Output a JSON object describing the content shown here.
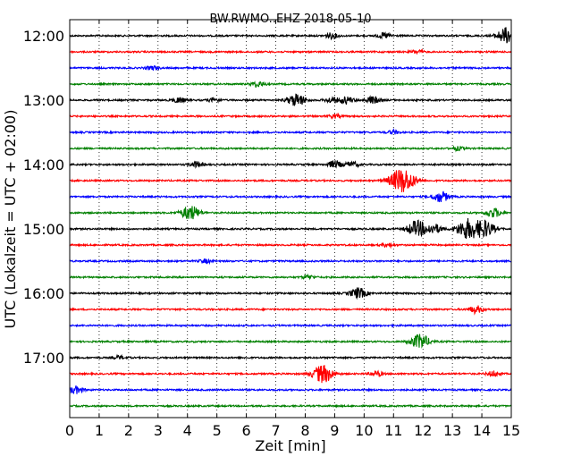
{
  "chart_data": {
    "type": "line",
    "title": "BW.RWMO..EHZ 2018-05-10",
    "xlabel": "Zeit  [min]",
    "ylabel": "UTC (Lokalzeit = UTC + 02:00)",
    "xlim": [
      0,
      15
    ],
    "x_ticks": [
      "0",
      "1",
      "2",
      "3",
      "4",
      "5",
      "6",
      "7",
      "8",
      "9",
      "10",
      "11",
      "12",
      "13",
      "14",
      "15"
    ],
    "y_tick_labels": [
      "12:00",
      "13:00",
      "14:00",
      "15:00",
      "16:00",
      "17:00"
    ],
    "grid": true,
    "row_interval_min": 15,
    "rows": [
      {
        "time": "12:00",
        "color": "#000000",
        "events": [
          {
            "t": 8.9,
            "a": 3
          },
          {
            "t": 10.7,
            "a": 3
          },
          {
            "t": 14.85,
            "a": 9
          }
        ]
      },
      {
        "time": "12:15",
        "color": "#ff0000",
        "events": [
          {
            "t": 11.8,
            "a": 2
          }
        ]
      },
      {
        "time": "12:30",
        "color": "#0000ff",
        "events": [
          {
            "t": 2.8,
            "a": 2
          }
        ]
      },
      {
        "time": "12:45",
        "color": "#008000",
        "events": [
          {
            "t": 6.4,
            "a": 3
          }
        ]
      },
      {
        "time": "13:00",
        "color": "#000000",
        "events": [
          {
            "t": 3.7,
            "a": 3
          },
          {
            "t": 4.9,
            "a": 2
          },
          {
            "t": 7.7,
            "a": 7
          },
          {
            "t": 8.9,
            "a": 3
          },
          {
            "t": 9.4,
            "a": 4
          },
          {
            "t": 10.3,
            "a": 4
          }
        ]
      },
      {
        "time": "13:15",
        "color": "#ff0000",
        "events": [
          {
            "t": 9.0,
            "a": 2
          }
        ]
      },
      {
        "time": "13:30",
        "color": "#0000ff",
        "events": [
          {
            "t": 11.0,
            "a": 2
          }
        ]
      },
      {
        "time": "13:45",
        "color": "#008000",
        "events": [
          {
            "t": 13.2,
            "a": 2
          }
        ]
      },
      {
        "time": "14:00",
        "color": "#000000",
        "events": [
          {
            "t": 4.3,
            "a": 3
          },
          {
            "t": 9.0,
            "a": 4
          },
          {
            "t": 9.6,
            "a": 3
          }
        ]
      },
      {
        "time": "14:15",
        "color": "#ff0000",
        "events": [
          {
            "t": 11.3,
            "a": 14
          }
        ]
      },
      {
        "time": "14:30",
        "color": "#0000ff",
        "events": [
          {
            "t": 12.6,
            "a": 6
          }
        ]
      },
      {
        "time": "14:45",
        "color": "#008000",
        "events": [
          {
            "t": 4.1,
            "a": 8
          },
          {
            "t": 14.4,
            "a": 5
          }
        ]
      },
      {
        "time": "15:00",
        "color": "#000000",
        "events": [
          {
            "t": 11.8,
            "a": 9
          },
          {
            "t": 12.4,
            "a": 5
          },
          {
            "t": 13.5,
            "a": 11
          },
          {
            "t": 14.1,
            "a": 9
          }
        ]
      },
      {
        "time": "15:15",
        "color": "#ff0000",
        "events": [
          {
            "t": 10.8,
            "a": 2
          }
        ]
      },
      {
        "time": "15:30",
        "color": "#0000ff",
        "events": [
          {
            "t": 4.6,
            "a": 2
          }
        ]
      },
      {
        "time": "15:45",
        "color": "#008000",
        "events": [
          {
            "t": 8.1,
            "a": 2
          }
        ]
      },
      {
        "time": "16:00",
        "color": "#000000",
        "events": [
          {
            "t": 9.8,
            "a": 6
          }
        ]
      },
      {
        "time": "16:15",
        "color": "#ff0000",
        "events": [
          {
            "t": 13.8,
            "a": 4
          }
        ]
      },
      {
        "time": "16:30",
        "color": "#0000ff",
        "events": []
      },
      {
        "time": "16:45",
        "color": "#008000",
        "events": [
          {
            "t": 11.9,
            "a": 8
          }
        ]
      },
      {
        "time": "17:00",
        "color": "#000000",
        "events": [
          {
            "t": 1.7,
            "a": 2
          }
        ]
      },
      {
        "time": "17:15",
        "color": "#ff0000",
        "events": [
          {
            "t": 8.6,
            "a": 10
          },
          {
            "t": 10.4,
            "a": 3
          },
          {
            "t": 14.4,
            "a": 3
          }
        ]
      },
      {
        "time": "17:30",
        "color": "#0000ff",
        "events": [
          {
            "t": 0.2,
            "a": 4
          }
        ]
      },
      {
        "time": "17:45",
        "color": "#008000",
        "events": []
      }
    ]
  }
}
